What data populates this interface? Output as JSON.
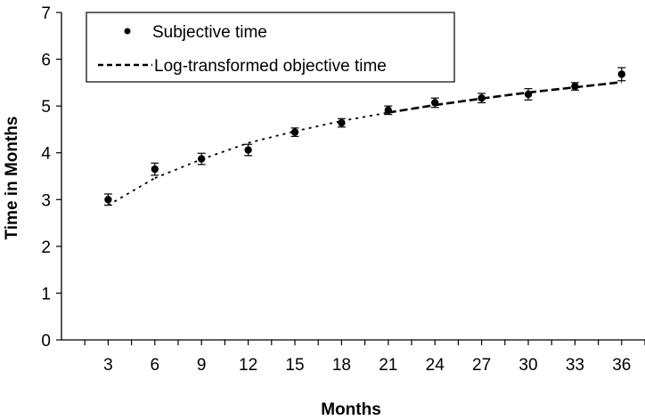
{
  "chart_data": {
    "type": "scatter",
    "title": "",
    "xlabel": "Months",
    "ylabel": "Time in Months",
    "categories": [
      "3",
      "6",
      "9",
      "12",
      "15",
      "18",
      "21",
      "24",
      "27",
      "30",
      "33",
      "36"
    ],
    "x": [
      3,
      6,
      9,
      12,
      15,
      18,
      21,
      24,
      27,
      30,
      33,
      36
    ],
    "xlim": [
      0,
      37.5
    ],
    "ylim": [
      0,
      7
    ],
    "yticks": [
      "0",
      "1",
      "2",
      "3",
      "4",
      "5",
      "6",
      "7"
    ],
    "grid": false,
    "legend_position": "top-left",
    "series": [
      {
        "name": "Subjective time",
        "kind": "points-with-error-bars",
        "values": [
          3.0,
          3.65,
          3.87,
          4.06,
          4.44,
          4.64,
          4.91,
          5.07,
          5.17,
          5.25,
          5.42,
          5.68
        ],
        "error": [
          0.12,
          0.13,
          0.12,
          0.12,
          0.09,
          0.09,
          0.09,
          0.1,
          0.1,
          0.12,
          0.08,
          0.14
        ]
      },
      {
        "name": "Log-transformed objective time",
        "kind": "dashed-line",
        "values": [
          2.88,
          3.46,
          3.86,
          4.21,
          4.46,
          4.68,
          4.86,
          5.02,
          5.16,
          5.29,
          5.4,
          5.51
        ]
      }
    ]
  }
}
